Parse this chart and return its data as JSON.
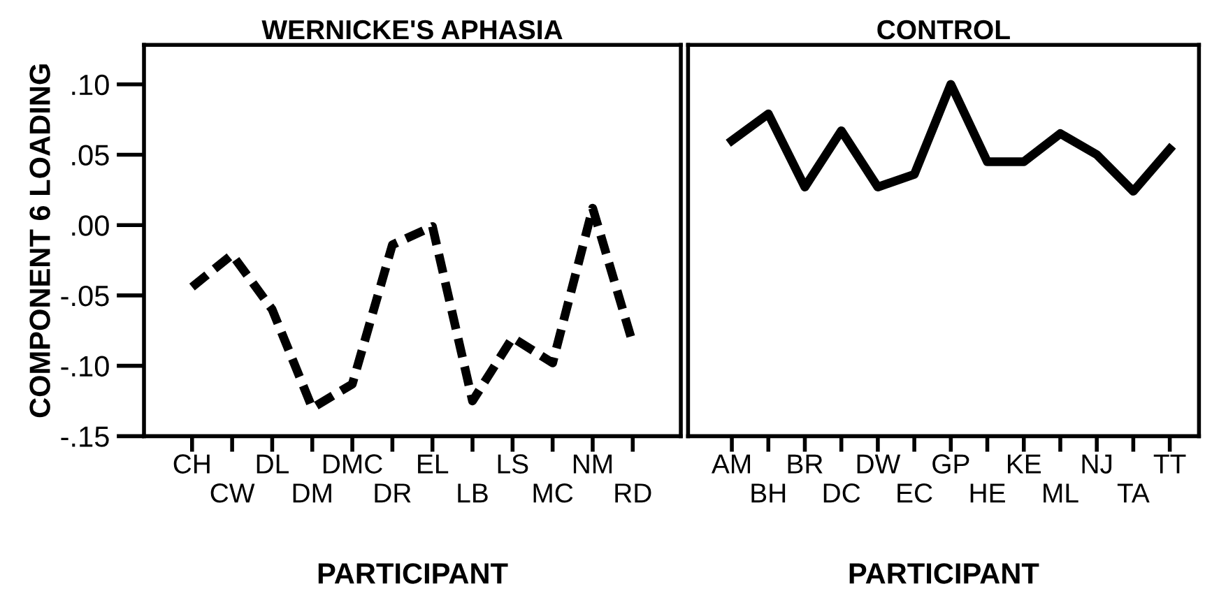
{
  "chart_data": [
    {
      "type": "line",
      "title": "WERNICKE'S APHASIA",
      "xlabel": "PARTICIPANT",
      "ylabel": "COMPONENT 6 LOADING",
      "categories": [
        "CH",
        "CW",
        "DL",
        "DM",
        "DMC",
        "DR",
        "EL",
        "LB",
        "LS",
        "MC",
        "NM",
        "RD"
      ],
      "series": [
        {
          "color": "#000000",
          "line_style": "dashed",
          "values": [
            -0.044,
            -0.021,
            -0.06,
            -0.13,
            -0.113,
            -0.014,
            -0.001,
            -0.125,
            -0.08,
            -0.098,
            0.012,
            -0.084
          ]
        }
      ],
      "ylim": [
        -0.15,
        0.128
      ],
      "yticks": [
        {
          "value": -0.15,
          "label": "-.15"
        },
        {
          "value": -0.1,
          "label": "-.10"
        },
        {
          "value": -0.05,
          "label": "-.05"
        },
        {
          "value": 0,
          "label": ".00"
        },
        {
          "value": 0.05,
          "label": ".05"
        },
        {
          "value": 0.1,
          "label": ".10"
        }
      ],
      "grid": false,
      "legend": false,
      "marker": "none"
    },
    {
      "type": "line",
      "title": "CONTROL",
      "xlabel": "PARTICIPANT",
      "categories": [
        "AM",
        "BH",
        "BR",
        "DC",
        "DW",
        "EC",
        "GP",
        "HE",
        "KE",
        "ML",
        "NJ",
        "TA",
        "TT"
      ],
      "series": [
        {
          "color": "#000000",
          "line_style": "solid",
          "values": [
            0.06,
            0.079,
            0.027,
            0.067,
            0.027,
            0.036,
            0.1,
            0.045,
            0.045,
            0.065,
            0.05,
            0.024,
            0.054
          ]
        }
      ],
      "ylim": [
        -0.15,
        0.128
      ],
      "tick_labels": "x",
      "grid": false,
      "legend": false,
      "marker": "none"
    }
  ]
}
